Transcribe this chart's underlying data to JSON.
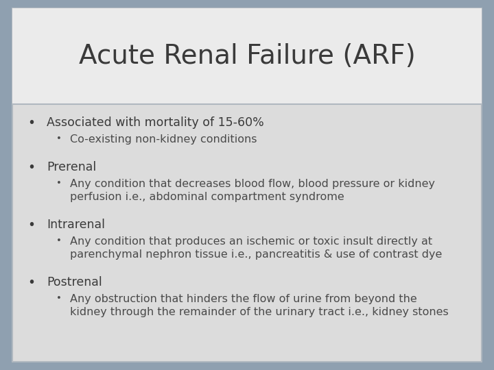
{
  "title": "Acute Renal Failure (ARF)",
  "title_fontsize": 28,
  "title_color": "#3a3a3a",
  "title_bg": "#ebebeb",
  "body_bg": "#dcdcdc",
  "border_color": "#b0b8c0",
  "outer_bg": "#8fa0b0",
  "bullet_color": "#3a3a3a",
  "sub_bullet_color": "#4a4a4a",
  "bullets": [
    {
      "main": "Associated with mortality of 15-60%",
      "sub": [
        "Co-existing non-kidney conditions"
      ]
    },
    {
      "main": "Prerenal",
      "sub": [
        "Any condition that decreases blood flow, blood pressure or kidney\nperfusion i.e., abdominal compartment syndrome"
      ]
    },
    {
      "main": "Intrarenal",
      "sub": [
        "Any condition that produces an ischemic or toxic insult directly at\nparenchymal nephron tissue i.e., pancreatitis & use of contrast dye"
      ]
    },
    {
      "main": "Postrenal",
      "sub": [
        "Any obstruction that hinders the flow of urine from beyond the\nkidney through the remainder of the urinary tract i.e., kidney stones"
      ]
    }
  ],
  "main_fontsize": 12.5,
  "sub_fontsize": 11.5,
  "figsize": [
    7.2,
    5.4
  ],
  "dpi": 100
}
